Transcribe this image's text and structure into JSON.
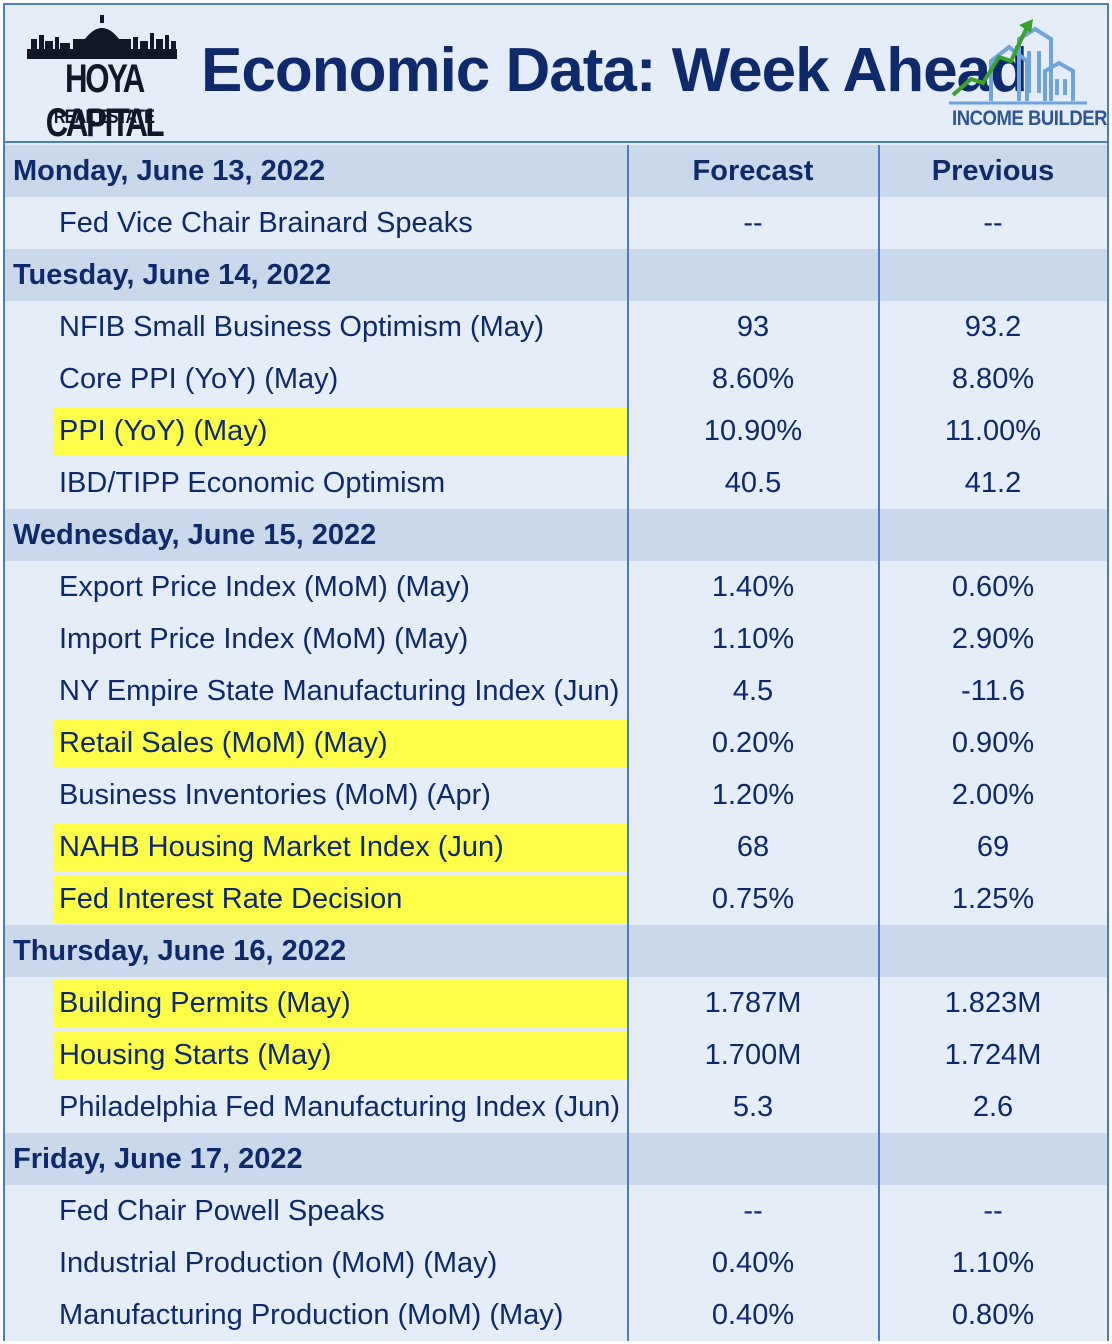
{
  "header": {
    "logo_left_name": "HOYA CAPITAL",
    "logo_left_sub": "REAL ESTATE",
    "title": "Economic Data: Week Ahead",
    "logo_right_text": "INCOME BUILDER"
  },
  "columns": {
    "forecast": "Forecast",
    "previous": "Previous"
  },
  "days": [
    {
      "label": "Monday, June 13, 2022"
    },
    {
      "label": "Tuesday, June 14, 2022"
    },
    {
      "label": "Wednesday, June 15, 2022"
    },
    {
      "label": "Thursday, June 16, 2022"
    },
    {
      "label": "Friday, June 17, 2022"
    }
  ],
  "rows": [
    {
      "label": "Fed Vice Chair Brainard Speaks",
      "forecast": "--",
      "previous": "--",
      "highlight": false
    },
    {
      "label": "NFIB Small Business Optimism (May)",
      "forecast": "93",
      "previous": "93.2",
      "highlight": false
    },
    {
      "label": "Core PPI (YoY) (May)",
      "forecast": "8.60%",
      "previous": "8.80%",
      "highlight": false
    },
    {
      "label": "PPI (YoY) (May)",
      "forecast": "10.90%",
      "previous": "11.00%",
      "highlight": true
    },
    {
      "label": "IBD/TIPP Economic Optimism",
      "forecast": "40.5",
      "previous": "41.2",
      "highlight": false
    },
    {
      "label": "Export Price Index (MoM) (May)",
      "forecast": "1.40%",
      "previous": "0.60%",
      "highlight": false
    },
    {
      "label": "Import Price Index (MoM) (May)",
      "forecast": "1.10%",
      "previous": "2.90%",
      "highlight": false
    },
    {
      "label": "NY Empire State Manufacturing Index (Jun)",
      "forecast": "4.5",
      "previous": "-11.6",
      "highlight": false
    },
    {
      "label": "Retail Sales (MoM) (May)",
      "forecast": "0.20%",
      "previous": "0.90%",
      "highlight": true
    },
    {
      "label": "Business Inventories (MoM) (Apr)",
      "forecast": "1.20%",
      "previous": "2.00%",
      "highlight": false
    },
    {
      "label": "NAHB Housing Market Index (Jun)",
      "forecast": "68",
      "previous": "69",
      "highlight": true
    },
    {
      "label": "Fed Interest Rate Decision",
      "forecast": "0.75%",
      "previous": "1.25%",
      "highlight": true
    },
    {
      "label": "Building Permits (May)",
      "forecast": "1.787M",
      "previous": "1.823M",
      "highlight": true
    },
    {
      "label": "Housing Starts (May)",
      "forecast": "1.700M",
      "previous": "1.724M",
      "highlight": true
    },
    {
      "label": "Philadelphia Fed Manufacturing Index (Jun)",
      "forecast": "5.3",
      "previous": "2.6",
      "highlight": false
    },
    {
      "label": "Fed Chair Powell Speaks",
      "forecast": "--",
      "previous": "--",
      "highlight": false
    },
    {
      "label": "Industrial Production (MoM) (May)",
      "forecast": "0.40%",
      "previous": "1.10%",
      "highlight": false
    },
    {
      "label": "Manufacturing Production (MoM) (May)",
      "forecast": "0.40%",
      "previous": "0.80%",
      "highlight": false
    }
  ],
  "colors": {
    "highlight": "#ffff4a",
    "day_band": "#c9d8ea",
    "text": "#0e2a6b",
    "border": "#4a7cc9"
  }
}
